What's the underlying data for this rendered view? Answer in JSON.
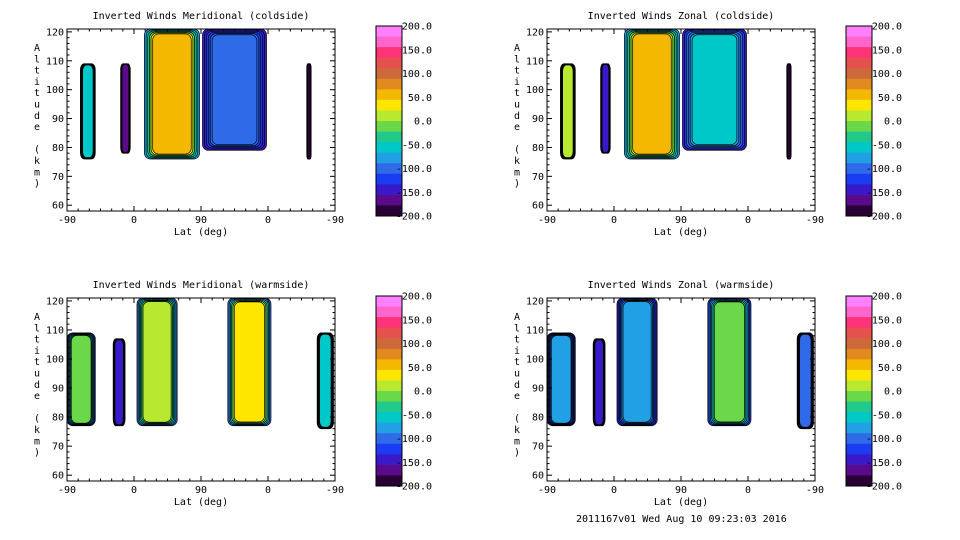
{
  "footer": "2011167v01 Wed Aug 10 09:23:03 2016",
  "colors": {
    "contour_line": "#000000",
    "scale": [
      "#ff80ff",
      "#ff66cc",
      "#ff3377",
      "#e6504d",
      "#cc6a3a",
      "#e08a20",
      "#f5b800",
      "#ffe600",
      "#b8e830",
      "#6bd84a",
      "#22c98c",
      "#00c8c8",
      "#22a0e6",
      "#2f6ae8",
      "#1a3cf2",
      "#3a1ac8",
      "#5a0a8a",
      "#280036"
    ]
  },
  "chart_data": [
    {
      "type": "heatmap",
      "title": "Inverted Winds Meridional (coldside)",
      "xlabel": "Lat (deg)",
      "ylabel": "Altitude (km)",
      "xticks": [
        "-90",
        "0",
        "90",
        "0",
        "-90"
      ],
      "yticks": [
        60,
        70,
        80,
        90,
        100,
        110,
        120
      ],
      "ylim": [
        58,
        121
      ],
      "colorbar": {
        "min": -200,
        "max": 200,
        "ticks": [
          "200.0",
          "150.0",
          "100.0",
          "50.0",
          "0.0",
          "-50.0",
          "-100.0",
          "-150.0",
          "-200.0"
        ]
      },
      "regions": [
        {
          "x": [
            -72,
            -52
          ],
          "alt": [
            76,
            109
          ],
          "value": -60
        },
        {
          "x": [
            -18,
            -5
          ],
          "alt": [
            78,
            109
          ],
          "value": -160
        },
        {
          "x": [
            14,
            88
          ],
          "alt": [
            76,
            121
          ],
          "value": 55
        },
        {
          "x": [
            92,
            178
          ],
          "alt": [
            79,
            121
          ],
          "value": -90
        },
        {
          "x": [
            232,
            238
          ],
          "alt": [
            76,
            109
          ],
          "value": -200
        }
      ]
    },
    {
      "type": "heatmap",
      "title": "Inverted Winds Zonal (coldside)",
      "xlabel": "Lat (deg)",
      "ylabel": "Altitude (km)",
      "xticks": [
        "-90",
        "0",
        "90",
        "0",
        "-90"
      ],
      "yticks": [
        60,
        70,
        80,
        90,
        100,
        110,
        120
      ],
      "ylim": [
        58,
        121
      ],
      "colorbar": {
        "min": -200,
        "max": 200,
        "ticks": [
          "200.0",
          "150.0",
          "100.0",
          "50.0",
          "0.0",
          "-50.0",
          "-100.0",
          "-150.0",
          "-200.0"
        ]
      },
      "regions": [
        {
          "x": [
            -72,
            -52
          ],
          "alt": [
            76,
            109
          ],
          "value": 10
        },
        {
          "x": [
            -18,
            -5
          ],
          "alt": [
            78,
            109
          ],
          "value": -150
        },
        {
          "x": [
            14,
            88
          ],
          "alt": [
            76,
            121
          ],
          "value": 45
        },
        {
          "x": [
            92,
            178
          ],
          "alt": [
            79,
            121
          ],
          "value": -60
        },
        {
          "x": [
            232,
            238
          ],
          "alt": [
            76,
            109
          ],
          "value": -200
        }
      ]
    },
    {
      "type": "heatmap",
      "title": "Inverted Winds Meridional (warmside)",
      "xlabel": "Lat (deg)",
      "ylabel": "Altitude (km)",
      "xticks": [
        "-90",
        "0",
        "90",
        "0",
        "-90"
      ],
      "yticks": [
        60,
        70,
        80,
        90,
        100,
        110,
        120
      ],
      "ylim": [
        58,
        121
      ],
      "colorbar": {
        "min": -200,
        "max": 200,
        "ticks": [
          "200.0",
          "150.0",
          "100.0",
          "50.0",
          "0.0",
          "-50.0",
          "-100.0",
          "-150.0",
          "-200.0"
        ]
      },
      "regions": [
        {
          "x": [
            -90,
            -52
          ],
          "alt": [
            77,
            109
          ],
          "value": -10
        },
        {
          "x": [
            -28,
            -12
          ],
          "alt": [
            77,
            107
          ],
          "value": -140
        },
        {
          "x": [
            4,
            58
          ],
          "alt": [
            77,
            121
          ],
          "value": 15
        },
        {
          "x": [
            126,
            184
          ],
          "alt": [
            77,
            121
          ],
          "value": 30
        },
        {
          "x": [
            246,
            268
          ],
          "alt": [
            76,
            109
          ],
          "value": -60
        }
      ]
    },
    {
      "type": "heatmap",
      "title": "Inverted Winds Zonal (warmside)",
      "xlabel": "Lat (deg)",
      "ylabel": "Altitude (km)",
      "xticks": [
        "-90",
        "0",
        "90",
        "0",
        "-90"
      ],
      "yticks": [
        60,
        70,
        80,
        90,
        100,
        110,
        120
      ],
      "ylim": [
        58,
        121
      ],
      "colorbar": {
        "min": -200,
        "max": 200,
        "ticks": [
          "200.0",
          "150.0",
          "100.0",
          "50.0",
          "0.0",
          "-50.0",
          "-100.0",
          "-150.0",
          "-200.0"
        ]
      },
      "regions": [
        {
          "x": [
            -90,
            -52
          ],
          "alt": [
            77,
            109
          ],
          "value": -80
        },
        {
          "x": [
            -28,
            -12
          ],
          "alt": [
            77,
            107
          ],
          "value": -150
        },
        {
          "x": [
            4,
            58
          ],
          "alt": [
            77,
            121
          ],
          "value": -70
        },
        {
          "x": [
            126,
            184
          ],
          "alt": [
            77,
            121
          ],
          "value": -20
        },
        {
          "x": [
            246,
            268
          ],
          "alt": [
            76,
            109
          ],
          "value": -90
        }
      ]
    }
  ]
}
